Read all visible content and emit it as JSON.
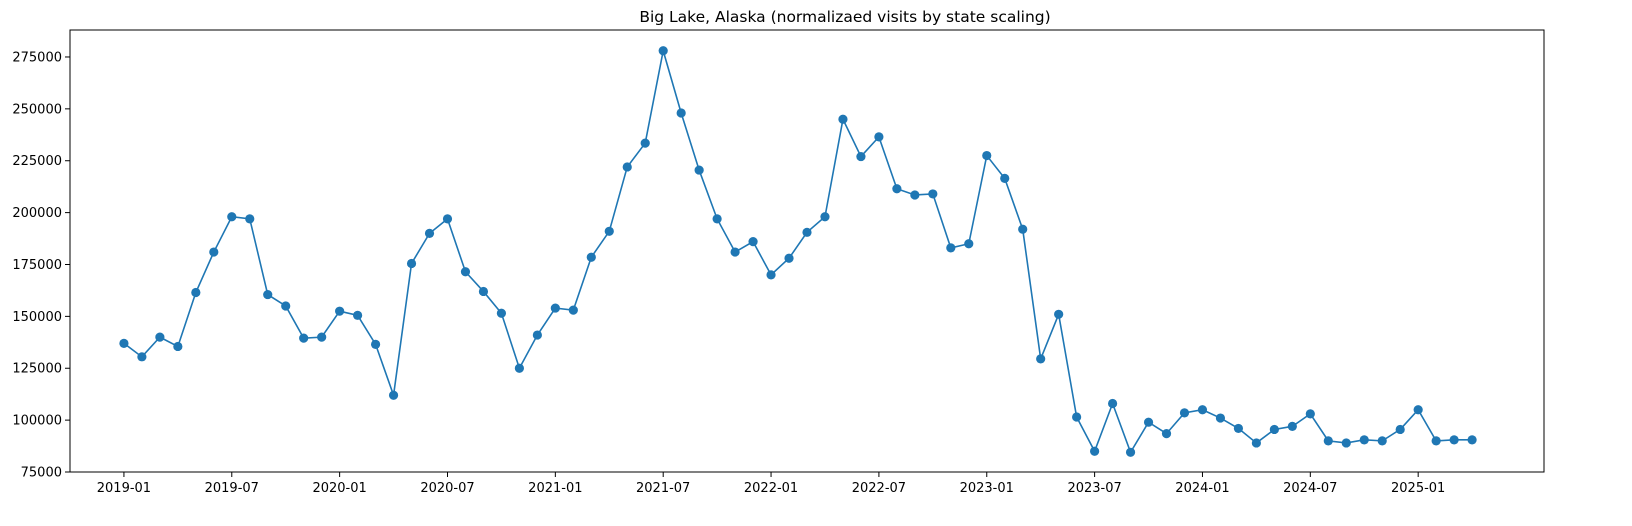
{
  "chart_data": {
    "type": "line",
    "title": "Big Lake, Alaska (normalizaed visits by state scaling)",
    "xlabel": "",
    "ylabel": "",
    "x_tick_labels": [
      "2019-01",
      "2019-07",
      "2020-01",
      "2020-07",
      "2021-01",
      "2021-07",
      "2022-01",
      "2022-07",
      "2023-01",
      "2023-07",
      "2024-01",
      "2024-07",
      "2025-01"
    ],
    "y_tick_labels": [
      "75000",
      "100000",
      "125000",
      "150000",
      "175000",
      "200000",
      "225000",
      "250000",
      "275000"
    ],
    "y_ticks": [
      75000,
      100000,
      125000,
      150000,
      175000,
      200000,
      225000,
      250000,
      275000
    ],
    "ylim": [
      75000,
      288000
    ],
    "xlim": [
      "2018-10-01",
      "2025-08-01"
    ],
    "grid": false,
    "marker": "circle",
    "color": "#1f77b4",
    "series": [
      {
        "x": [
          "2019-01",
          "2019-02",
          "2019-03",
          "2019-04",
          "2019-05",
          "2019-06",
          "2019-07",
          "2019-08",
          "2019-09",
          "2019-10",
          "2019-11",
          "2019-12",
          "2020-01",
          "2020-02",
          "2020-03",
          "2020-04",
          "2020-05",
          "2020-06",
          "2020-07",
          "2020-08",
          "2020-09",
          "2020-10",
          "2020-11",
          "2020-12",
          "2021-01",
          "2021-02",
          "2021-03",
          "2021-04",
          "2021-05",
          "2021-06",
          "2021-07",
          "2021-08",
          "2021-09",
          "2021-10",
          "2021-11",
          "2021-12",
          "2022-01",
          "2022-02",
          "2022-03",
          "2022-04",
          "2022-05",
          "2022-06",
          "2022-07",
          "2022-08",
          "2022-09",
          "2022-10",
          "2022-11",
          "2022-12",
          "2023-01",
          "2023-02",
          "2023-03",
          "2023-04",
          "2023-05",
          "2023-06",
          "2023-07",
          "2023-08",
          "2023-09",
          "2023-10",
          "2023-11",
          "2023-12",
          "2024-01",
          "2024-02",
          "2024-03",
          "2024-04",
          "2024-05",
          "2024-06",
          "2024-07",
          "2024-08",
          "2024-09",
          "2024-10",
          "2024-11",
          "2024-12",
          "2025-01",
          "2025-02",
          "2025-03",
          "2025-04"
        ],
        "y": [
          137000,
          130500,
          140000,
          135500,
          161500,
          181000,
          198000,
          197000,
          160500,
          155000,
          139500,
          140000,
          152500,
          150500,
          136500,
          112000,
          175500,
          190000,
          197000,
          171500,
          162000,
          151500,
          125000,
          141000,
          154000,
          153000,
          178500,
          191000,
          222000,
          233500,
          278000,
          248000,
          220500,
          197000,
          181000,
          186000,
          170000,
          178000,
          190500,
          198000,
          245000,
          227000,
          236500,
          211500,
          208500,
          209000,
          183000,
          185000,
          227500,
          216500,
          192000,
          129500,
          151000,
          101500,
          85000,
          108000,
          84500,
          99000,
          93500,
          103500,
          105000,
          101000,
          96000,
          89000,
          95500,
          97000,
          103000,
          90000,
          89000,
          90500,
          90000,
          95500,
          105000,
          90000,
          90500,
          90500
        ]
      }
    ]
  }
}
